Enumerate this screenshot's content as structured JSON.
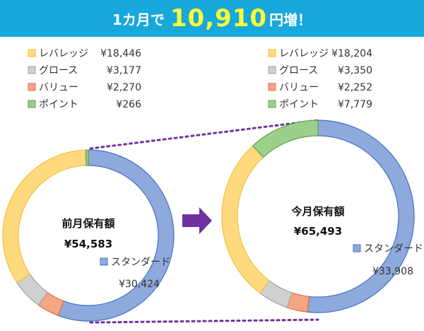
{
  "headline": {
    "prefix": "1カ月で",
    "amount": "10,910",
    "suffix": "円増！"
  },
  "colors": {
    "banner": "#17a8dc",
    "highlight": "#ffff37",
    "arrow": "#7030a0",
    "connector": "#7030a0",
    "standard_fill": "#8ea9db",
    "standard_stroke": "#4472c4",
    "leverage_fill": "#ffd97d",
    "leverage_stroke": "#f0c040",
    "growth_fill": "#d0d0d0",
    "growth_stroke": "#a0a0a0",
    "value_fill": "#f4a582",
    "value_stroke": "#e07050",
    "point_fill": "#9bcf8a",
    "point_stroke": "#5aa548"
  },
  "chart_data": [
    {
      "type": "pie",
      "variant": "donut",
      "center_label": "前月保有額",
      "total": "¥54,583",
      "series": [
        {
          "name": "スタンダード",
          "value": 30424,
          "value_label": "¥30,424",
          "color_key": "standard"
        },
        {
          "name": "バリュー",
          "value": 2270,
          "value_label": "¥2,270",
          "color_key": "value"
        },
        {
          "name": "グロース",
          "value": 3177,
          "value_label": "¥3,177",
          "color_key": "growth"
        },
        {
          "name": "レバレッジ",
          "value": 18446,
          "value_label": "¥18,446",
          "color_key": "leverage"
        },
        {
          "name": "ポイント",
          "value": 266,
          "value_label": "¥266",
          "color_key": "point"
        }
      ],
      "legend_order": [
        "レバレッジ",
        "グロース",
        "バリュー",
        "ポイント"
      ]
    },
    {
      "type": "pie",
      "variant": "donut",
      "center_label": "今月保有額",
      "total": "¥65,493",
      "series": [
        {
          "name": "スタンダード",
          "value": 33908,
          "value_label": "¥33,908",
          "color_key": "standard"
        },
        {
          "name": "バリュー",
          "value": 2252,
          "value_label": "¥2,252",
          "color_key": "value"
        },
        {
          "name": "グロース",
          "value": 3350,
          "value_label": "¥3,350",
          "color_key": "growth"
        },
        {
          "name": "レバレッジ",
          "value": 18204,
          "value_label": "¥18,204",
          "color_key": "leverage"
        },
        {
          "name": "ポイント",
          "value": 7779,
          "value_label": "¥7,779",
          "color_key": "point"
        }
      ],
      "legend_order": [
        "レバレッジ",
        "グロース",
        "バリュー",
        "ポイント"
      ]
    }
  ]
}
